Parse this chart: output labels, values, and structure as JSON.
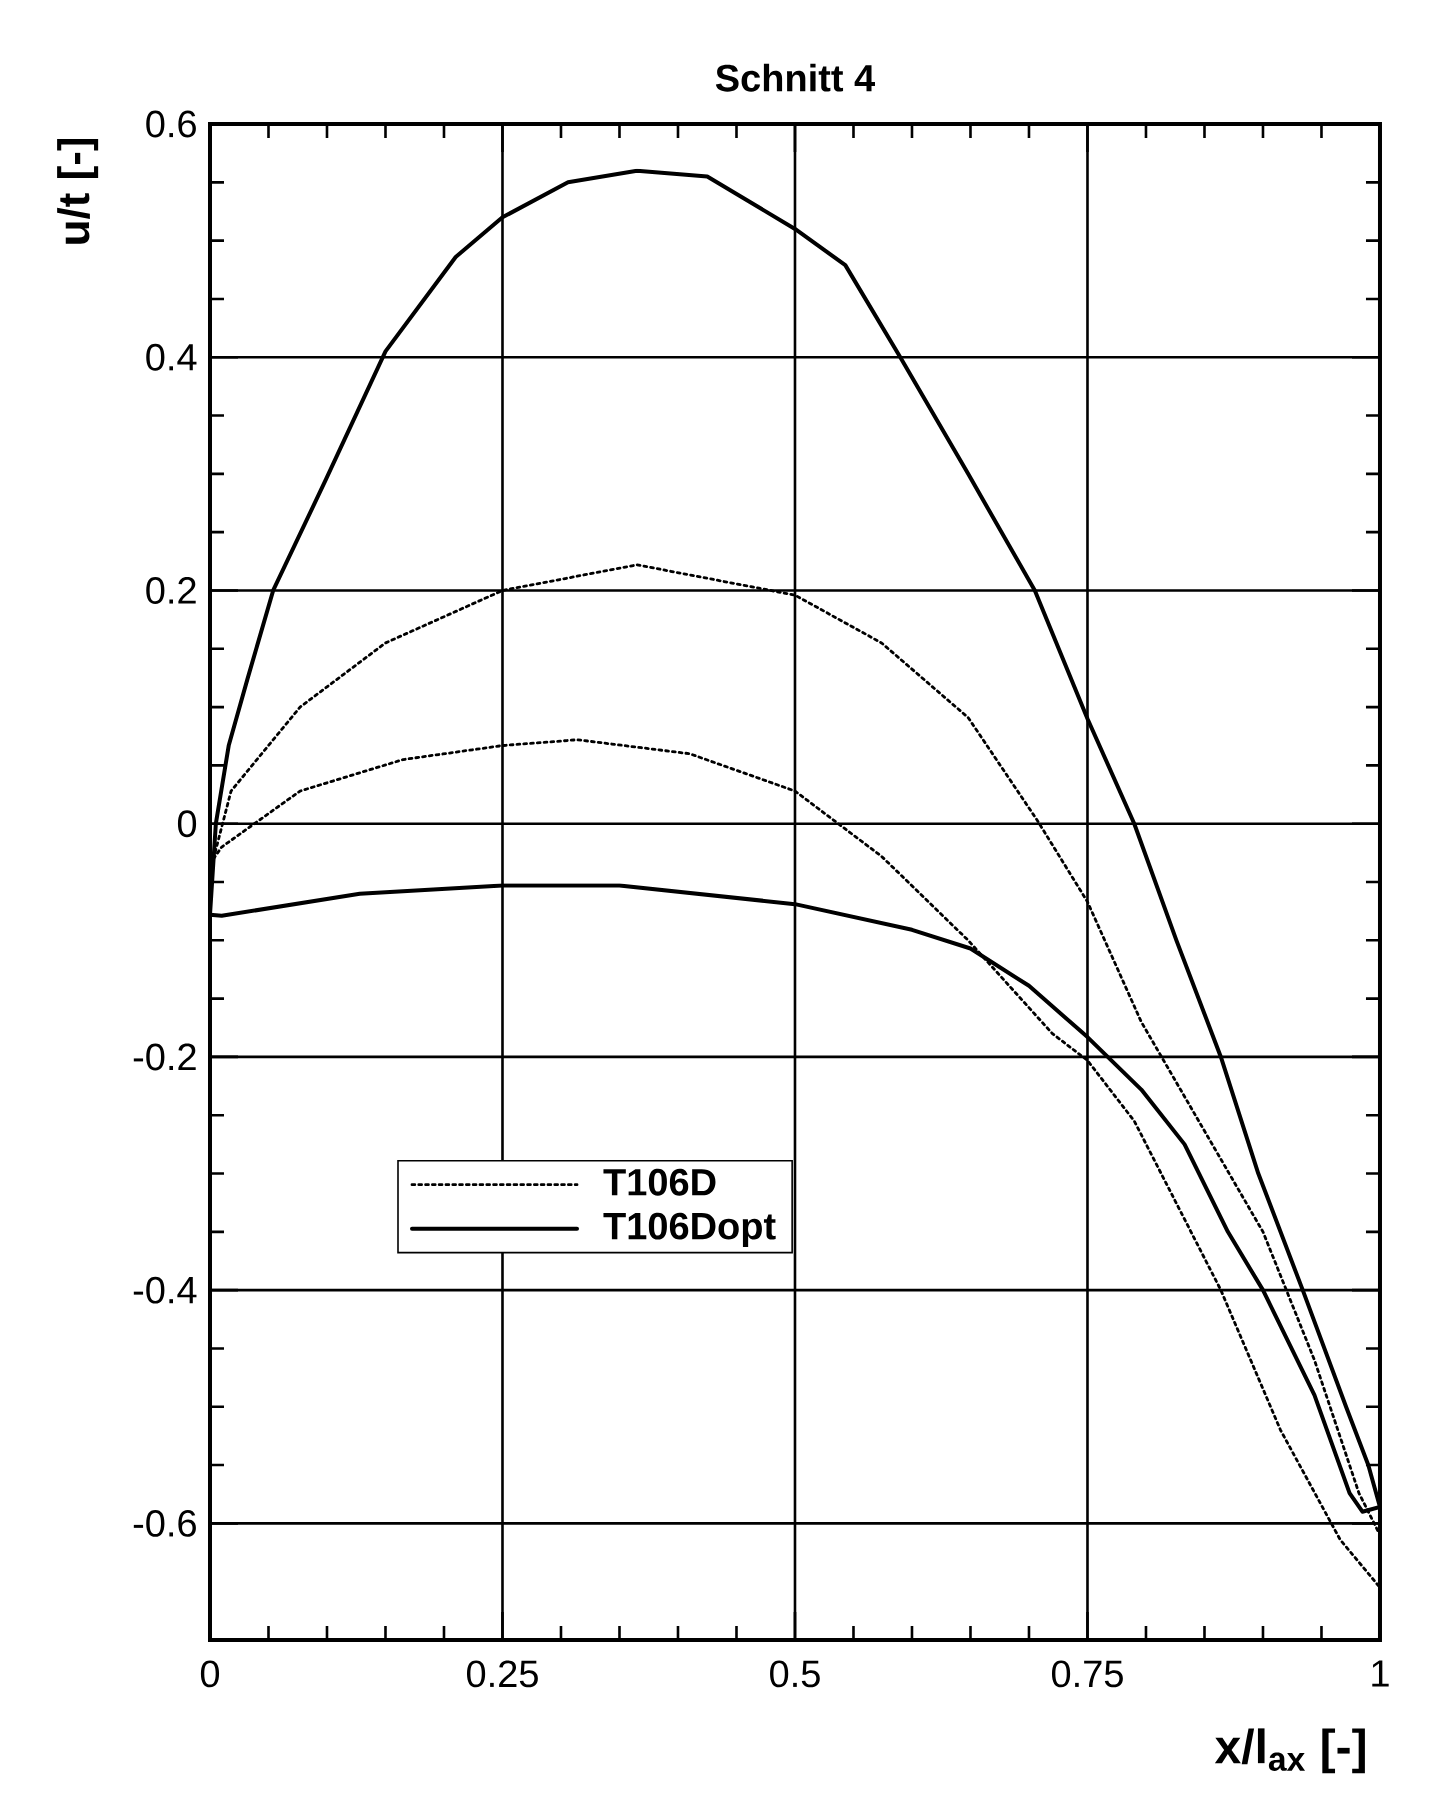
{
  "chart_data": {
    "type": "line",
    "title": "Schnitt 4",
    "xlabel": "x/l$_{ax}$ [-]",
    "ylabel": "u/t [-]",
    "xlim": [
      0,
      1
    ],
    "ylim": [
      -0.7,
      0.6
    ],
    "xticks": [
      0,
      0.25,
      0.5,
      0.75,
      1
    ],
    "yticks": [
      -0.6,
      -0.4,
      -0.2,
      0,
      0.2,
      0.4,
      0.6
    ],
    "grid": true,
    "legend": "left",
    "series": [
      {
        "name": "T106D",
        "color": "#000000",
        "line_style": "dotted",
        "x": [
          0.003,
          0.018,
          0.077,
          0.15,
          0.25,
          0.365,
          0.5,
          0.574,
          0.648,
          0.707,
          0.75,
          0.796,
          0.848,
          0.9,
          0.944,
          0.982,
          1.0
        ],
        "values": [
          -0.03,
          0.028,
          0.1,
          0.155,
          0.2,
          0.222,
          0.196,
          0.155,
          0.091,
          0.003,
          -0.067,
          -0.17,
          -0.26,
          -0.35,
          -0.46,
          -0.574,
          -0.61
        ]
      },
      {
        "color": "#000000",
        "line_style": "dotted",
        "x": [
          0.003,
          0.01,
          0.077,
          0.165,
          0.25,
          0.314,
          0.41,
          0.5,
          0.574,
          0.648,
          0.72,
          0.75,
          0.79,
          0.864,
          0.915,
          0.966,
          1.0
        ],
        "values": [
          -0.03,
          -0.02,
          0.028,
          0.055,
          0.067,
          0.072,
          0.06,
          0.028,
          -0.028,
          -0.1,
          -0.18,
          -0.203,
          -0.255,
          -0.4,
          -0.52,
          -0.614,
          -0.655
        ]
      },
      {
        "name": "T106Dopt",
        "color": "#000000",
        "line_style": "solid",
        "x": [
          0.0,
          0.005,
          0.016,
          0.032,
          0.054,
          0.099,
          0.15,
          0.21,
          0.25,
          0.306,
          0.365,
          0.425,
          0.5,
          0.543,
          0.59,
          0.648,
          0.705,
          0.75,
          0.79,
          0.826,
          0.864,
          0.896,
          0.934,
          0.971,
          0.99,
          1.0
        ],
        "values": [
          -0.078,
          0.0,
          0.067,
          0.124,
          0.2,
          0.295,
          0.405,
          0.486,
          0.52,
          0.55,
          0.56,
          0.555,
          0.51,
          0.479,
          0.4,
          0.3,
          0.2,
          0.09,
          0.0,
          -0.1,
          -0.2,
          -0.3,
          -0.4,
          -0.5,
          -0.55,
          -0.586
        ]
      },
      {
        "color": "#000000",
        "line_style": "solid",
        "x": [
          0.0,
          0.01,
          0.128,
          0.25,
          0.35,
          0.5,
          0.6,
          0.65,
          0.7,
          0.75,
          0.796,
          0.833,
          0.87,
          0.9,
          0.944,
          0.974,
          0.985,
          1.0
        ],
        "values": [
          -0.078,
          -0.079,
          -0.06,
          -0.053,
          -0.053,
          -0.069,
          -0.091,
          -0.107,
          -0.139,
          -0.183,
          -0.228,
          -0.275,
          -0.35,
          -0.4,
          -0.49,
          -0.574,
          -0.59,
          -0.586
        ]
      }
    ]
  }
}
